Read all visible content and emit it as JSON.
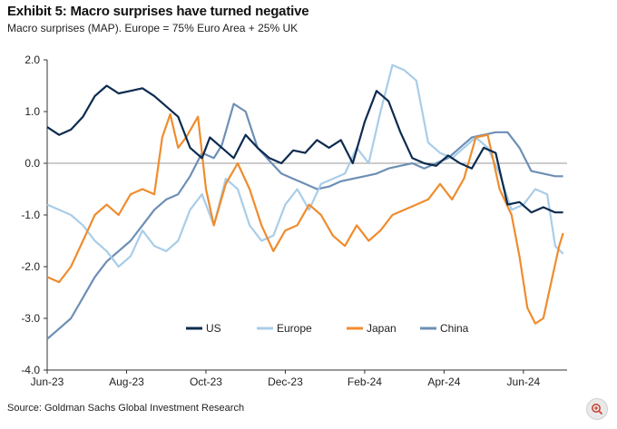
{
  "title": "Exhibit 5: Macro surprises have turned negative",
  "subtitle": "Macro surprises (MAP). Europe = 75% Euro Area + 25% UK",
  "source": "Source: Goldman Sachs Global Investment Research",
  "zoom_icon": "zoom-in-icon",
  "chart_data": {
    "type": "line",
    "x_labels": [
      "Jun-23",
      "Aug-23",
      "Oct-23",
      "Dec-23",
      "Feb-24",
      "Apr-24",
      "Jun-24"
    ],
    "x_label_months": [
      0,
      2,
      4,
      6,
      8,
      10,
      12
    ],
    "xlim": [
      0,
      13.1
    ],
    "ylim": [
      -4.0,
      2.0
    ],
    "y_ticks": [
      2.0,
      1.0,
      0.0,
      -1.0,
      -2.0,
      -3.0,
      -4.0
    ],
    "y_tick_labels": [
      "2.0",
      "1.0",
      "0.0",
      "-1.0",
      "-2.0",
      "-3.0",
      "-4.0"
    ],
    "legend": [
      "US",
      "Europe",
      "Japan",
      "China"
    ],
    "series": [
      {
        "name": "US",
        "color": "#0d2b4f",
        "points": [
          [
            0,
            0.7
          ],
          [
            0.3,
            0.55
          ],
          [
            0.6,
            0.65
          ],
          [
            0.9,
            0.9
          ],
          [
            1.2,
            1.3
          ],
          [
            1.5,
            1.5
          ],
          [
            1.8,
            1.35
          ],
          [
            2.1,
            1.4
          ],
          [
            2.4,
            1.45
          ],
          [
            2.7,
            1.3
          ],
          [
            3.0,
            1.1
          ],
          [
            3.3,
            0.9
          ],
          [
            3.6,
            0.3
          ],
          [
            3.9,
            0.1
          ],
          [
            4.1,
            0.5
          ],
          [
            4.4,
            0.3
          ],
          [
            4.7,
            0.1
          ],
          [
            5.0,
            0.55
          ],
          [
            5.3,
            0.3
          ],
          [
            5.6,
            0.1
          ],
          [
            5.9,
            0.0
          ],
          [
            6.2,
            0.25
          ],
          [
            6.5,
            0.2
          ],
          [
            6.8,
            0.45
          ],
          [
            7.1,
            0.3
          ],
          [
            7.4,
            0.45
          ],
          [
            7.7,
            0.0
          ],
          [
            8.0,
            0.8
          ],
          [
            8.3,
            1.4
          ],
          [
            8.6,
            1.2
          ],
          [
            8.9,
            0.6
          ],
          [
            9.2,
            0.1
          ],
          [
            9.5,
            0.0
          ],
          [
            9.8,
            -0.05
          ],
          [
            10.1,
            0.15
          ],
          [
            10.4,
            0.0
          ],
          [
            10.7,
            -0.1
          ],
          [
            11.0,
            0.3
          ],
          [
            11.3,
            0.2
          ],
          [
            11.6,
            -0.8
          ],
          [
            11.9,
            -0.75
          ],
          [
            12.2,
            -0.95
          ],
          [
            12.5,
            -0.85
          ],
          [
            12.8,
            -0.95
          ],
          [
            13.0,
            -0.95
          ]
        ]
      },
      {
        "name": "Europe",
        "color": "#a9cde8",
        "points": [
          [
            0,
            -0.8
          ],
          [
            0.3,
            -0.9
          ],
          [
            0.6,
            -1.0
          ],
          [
            0.9,
            -1.2
          ],
          [
            1.2,
            -1.5
          ],
          [
            1.5,
            -1.7
          ],
          [
            1.8,
            -2.0
          ],
          [
            2.1,
            -1.8
          ],
          [
            2.4,
            -1.3
          ],
          [
            2.7,
            -1.6
          ],
          [
            3.0,
            -1.7
          ],
          [
            3.3,
            -1.5
          ],
          [
            3.6,
            -0.9
          ],
          [
            3.9,
            -0.6
          ],
          [
            4.2,
            -1.2
          ],
          [
            4.5,
            -0.3
          ],
          [
            4.8,
            -0.5
          ],
          [
            5.1,
            -1.2
          ],
          [
            5.4,
            -1.5
          ],
          [
            5.7,
            -1.4
          ],
          [
            6.0,
            -0.8
          ],
          [
            6.3,
            -0.5
          ],
          [
            6.6,
            -0.9
          ],
          [
            6.9,
            -0.4
          ],
          [
            7.2,
            -0.3
          ],
          [
            7.5,
            -0.2
          ],
          [
            7.8,
            0.3
          ],
          [
            8.1,
            0.0
          ],
          [
            8.4,
            1.0
          ],
          [
            8.7,
            1.9
          ],
          [
            9.0,
            1.8
          ],
          [
            9.3,
            1.6
          ],
          [
            9.6,
            0.4
          ],
          [
            9.9,
            0.2
          ],
          [
            10.2,
            0.1
          ],
          [
            10.5,
            0.3
          ],
          [
            10.8,
            0.5
          ],
          [
            11.1,
            0.3
          ],
          [
            11.4,
            -0.2
          ],
          [
            11.7,
            -0.9
          ],
          [
            12.0,
            -0.8
          ],
          [
            12.3,
            -0.5
          ],
          [
            12.6,
            -0.6
          ],
          [
            12.8,
            -1.6
          ],
          [
            13.0,
            -1.75
          ]
        ]
      },
      {
        "name": "Japan",
        "color": "#ef8c2d",
        "points": [
          [
            0,
            -2.2
          ],
          [
            0.3,
            -2.3
          ],
          [
            0.6,
            -2.0
          ],
          [
            0.9,
            -1.5
          ],
          [
            1.2,
            -1.0
          ],
          [
            1.5,
            -0.8
          ],
          [
            1.8,
            -1.0
          ],
          [
            2.1,
            -0.6
          ],
          [
            2.4,
            -0.5
          ],
          [
            2.7,
            -0.6
          ],
          [
            2.9,
            0.5
          ],
          [
            3.1,
            0.95
          ],
          [
            3.3,
            0.3
          ],
          [
            3.5,
            0.5
          ],
          [
            3.8,
            0.9
          ],
          [
            4.0,
            -0.5
          ],
          [
            4.2,
            -1.2
          ],
          [
            4.5,
            -0.4
          ],
          [
            4.8,
            0.0
          ],
          [
            5.1,
            -0.5
          ],
          [
            5.4,
            -1.2
          ],
          [
            5.7,
            -1.7
          ],
          [
            6.0,
            -1.3
          ],
          [
            6.3,
            -1.2
          ],
          [
            6.6,
            -0.8
          ],
          [
            6.9,
            -1.0
          ],
          [
            7.2,
            -1.4
          ],
          [
            7.5,
            -1.6
          ],
          [
            7.8,
            -1.2
          ],
          [
            8.1,
            -1.5
          ],
          [
            8.4,
            -1.3
          ],
          [
            8.7,
            -1.0
          ],
          [
            9.0,
            -0.9
          ],
          [
            9.3,
            -0.8
          ],
          [
            9.6,
            -0.7
          ],
          [
            9.9,
            -0.4
          ],
          [
            10.2,
            -0.7
          ],
          [
            10.5,
            -0.3
          ],
          [
            10.8,
            0.5
          ],
          [
            11.1,
            0.55
          ],
          [
            11.4,
            -0.5
          ],
          [
            11.7,
            -1.0
          ],
          [
            11.9,
            -1.8
          ],
          [
            12.1,
            -2.8
          ],
          [
            12.3,
            -3.1
          ],
          [
            12.5,
            -3.0
          ],
          [
            12.7,
            -2.3
          ],
          [
            12.9,
            -1.6
          ],
          [
            13.0,
            -1.35
          ]
        ]
      },
      {
        "name": "China",
        "color": "#6d8fb5",
        "points": [
          [
            0,
            -3.4
          ],
          [
            0.3,
            -3.2
          ],
          [
            0.6,
            -3.0
          ],
          [
            0.9,
            -2.6
          ],
          [
            1.2,
            -2.2
          ],
          [
            1.5,
            -1.9
          ],
          [
            1.8,
            -1.7
          ],
          [
            2.1,
            -1.5
          ],
          [
            2.4,
            -1.2
          ],
          [
            2.7,
            -0.9
          ],
          [
            3.0,
            -0.7
          ],
          [
            3.3,
            -0.6
          ],
          [
            3.6,
            -0.25
          ],
          [
            3.9,
            0.2
          ],
          [
            4.2,
            0.1
          ],
          [
            4.4,
            0.35
          ],
          [
            4.7,
            1.15
          ],
          [
            5.0,
            1.0
          ],
          [
            5.3,
            0.3
          ],
          [
            5.6,
            0.05
          ],
          [
            5.9,
            -0.2
          ],
          [
            6.2,
            -0.3
          ],
          [
            6.5,
            -0.4
          ],
          [
            6.8,
            -0.5
          ],
          [
            7.1,
            -0.45
          ],
          [
            7.4,
            -0.35
          ],
          [
            7.7,
            -0.3
          ],
          [
            8.0,
            -0.25
          ],
          [
            8.3,
            -0.2
          ],
          [
            8.6,
            -0.1
          ],
          [
            8.9,
            -0.05
          ],
          [
            9.2,
            0.0
          ],
          [
            9.5,
            -0.1
          ],
          [
            9.8,
            0.0
          ],
          [
            10.1,
            0.1
          ],
          [
            10.4,
            0.3
          ],
          [
            10.7,
            0.5
          ],
          [
            11.0,
            0.55
          ],
          [
            11.3,
            0.6
          ],
          [
            11.6,
            0.6
          ],
          [
            11.9,
            0.3
          ],
          [
            12.2,
            -0.15
          ],
          [
            12.5,
            -0.2
          ],
          [
            12.8,
            -0.25
          ],
          [
            13.0,
            -0.25
          ]
        ]
      }
    ]
  }
}
